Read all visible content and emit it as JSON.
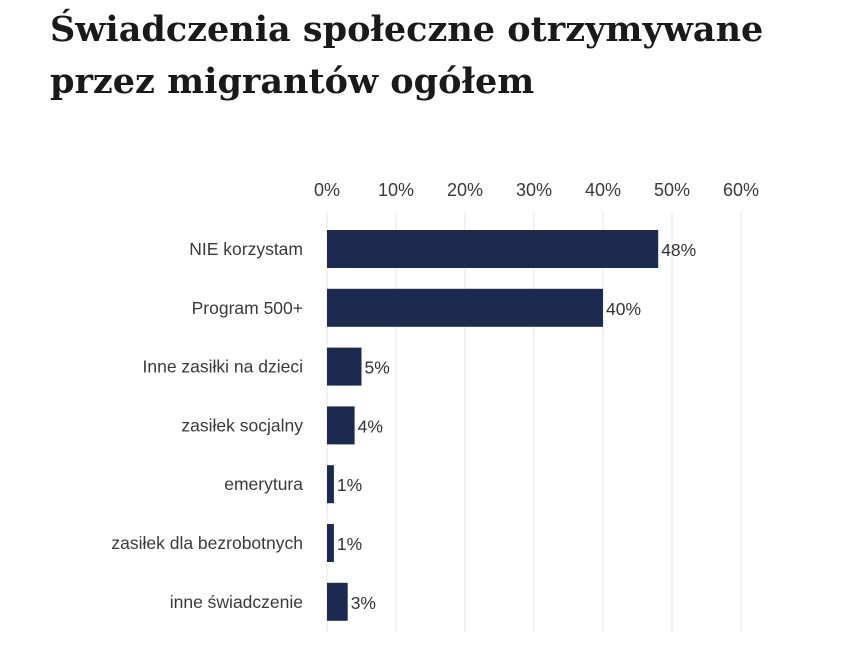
{
  "title": {
    "line1": "Świadczenia  społeczne  otrzymywane",
    "line2": "przez migrantów ogółem"
  },
  "chart_data": {
    "type": "bar",
    "orientation": "horizontal",
    "title": "Świadczenia społeczne otrzymywane przez migrantów ogółem",
    "categories": [
      "NIE korzystam",
      "Program 500+",
      "Inne zasiłki na dzieci",
      "zasiłek socjalny",
      "emerytura",
      "zasiłek dla bezrobotnych",
      "inne świadczenie"
    ],
    "values": [
      48,
      40,
      5,
      4,
      1,
      1,
      3
    ],
    "data_labels": [
      "48%",
      "40%",
      "5%",
      "4%",
      "1%",
      "1%",
      "3%"
    ],
    "xlim": [
      0,
      60
    ],
    "x_ticks": [
      0,
      10,
      20,
      30,
      40,
      50,
      60
    ],
    "x_tick_labels": [
      "0%",
      "10%",
      "20%",
      "30%",
      "40%",
      "50%",
      "60%"
    ],
    "x_axis_position": "top",
    "grid": true,
    "bar_color": "#1b2a4e"
  }
}
